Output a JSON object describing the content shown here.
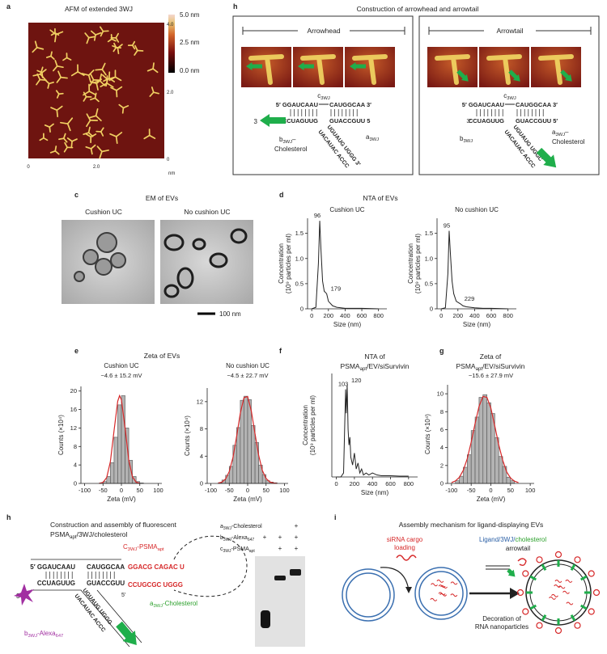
{
  "panels": {
    "a": {
      "label": "a",
      "title": "AFM of extended 3WJ",
      "colorbar": [
        "5.0 nm",
        "2.5 nm",
        "0.0 nm"
      ],
      "x_ticks": [
        "0",
        "2.0"
      ],
      "y_ticks": [
        "4.0",
        "2.0",
        "0"
      ],
      "unit": "nm"
    },
    "b": {
      "label": "h",
      "title": "Construction of arrowhead and arrowtail",
      "arrowhead": {
        "header": "Arrowhead",
        "c": [
          "c",
          "3WJ"
        ],
        "top_left": "5′ GGAUCAAU",
        "top_right": "CAUGGCAA 3′",
        "bottom_end": "3",
        "bottom_left": "CCUAGUUG",
        "bottom_right": "GUACCGUU 5",
        "diag_a": "UGUAUG UGGG 3′",
        "diag_b": "UACAUAC ACCC",
        "b": [
          "b",
          "3WJ",
          "–"
        ],
        "b2": "Cholesterol",
        "a": [
          "a",
          "3WJ"
        ]
      },
      "arrowtail": {
        "header": "Arrowtail",
        "c": [
          "c",
          "3WJ"
        ],
        "top_left": "5′ GGAUCAAU",
        "top_right": "CAUGGCAA 3′",
        "bottom_end": "3′",
        "bottom_left": "CCUAGUUG",
        "bottom_right": "GUACCGUU 5′",
        "diag_a": "UGUAUG UGGC",
        "diag_b": "UACAUAC ACCC",
        "b": [
          "b",
          "3WJ"
        ],
        "a": [
          "a",
          "3WJ",
          "–"
        ],
        "a2": "Cholesterol"
      }
    },
    "c": {
      "label": "c",
      "title": "EM of EVs",
      "left": "Cushion UC",
      "right": "No cushion UC",
      "scale_bar": "100 nm"
    },
    "d": {
      "label": "d",
      "title": "NTA of EVs"
    },
    "e": {
      "label": "e",
      "title": "Zeta of EVs"
    },
    "f": {
      "label": "f",
      "title": "NTA of",
      "title2": [
        "PSMA",
        "apt",
        "/EV/siSurvivin"
      ]
    },
    "g": {
      "label": "g",
      "title": "Zeta of",
      "title2": [
        "PSMA",
        "apt",
        "/EV/siSurvivin"
      ]
    },
    "h": {
      "label": "h",
      "title": "Construction and assembly of fluorescent",
      "title2": [
        "PSMA",
        "apt",
        "/3WJ/cholesterol"
      ],
      "c": [
        "C",
        "3WJ",
        "-PSMA",
        "apt"
      ],
      "top_left": "5′ GGAUCAAU",
      "top_mid": "CAUGGCAA",
      "top_red": "GGACG CAGAC U",
      "end": "3′",
      "bottom_left": "CCUAGUUG",
      "bottom_mid": "GUACCGUU",
      "bottom_red": "CCUGCGC UGGG",
      "five": "5′",
      "diag_a": "UGUAUG UGGG",
      "diag_b": "UACAUAC ACCC",
      "a": [
        "a",
        "3WJ",
        "-Cholesterol"
      ],
      "b": [
        "b",
        "3WJ",
        "-Alexa",
        "647"
      ],
      "gel": {
        "rows": [
          [
            "a",
            "3WJ",
            "-Cholesterol"
          ],
          [
            "b",
            "3WJ",
            "-Alexa",
            "647"
          ],
          [
            "c",
            "3WJ",
            "-PSMA",
            "apt"
          ]
        ],
        "signs": [
          [
            "+"
          ],
          [
            "+",
            "+",
            "+"
          ],
          [
            "+",
            "+"
          ]
        ]
      }
    },
    "i": {
      "label": "i",
      "title": "Assembly mechanism for ligand-displaying EVs",
      "cargo": [
        "siRNA cargo",
        "loading"
      ],
      "ligand": [
        "Ligand/3WJ/",
        "cholesterol"
      ],
      "arrowtail": "arrowtail",
      "decoration": [
        "Decoration of",
        "RNA nanoparticles"
      ]
    }
  },
  "chart_data": [
    {
      "type": "line",
      "title": "Cushion UC",
      "x": [
        0,
        50,
        80,
        96,
        110,
        130,
        150,
        179,
        200,
        250,
        300,
        400,
        500,
        600,
        800
      ],
      "values": [
        0,
        0.03,
        0.9,
        1.75,
        1.2,
        0.55,
        0.35,
        0.3,
        0.15,
        0.06,
        0.03,
        0.01,
        0.01,
        0.01,
        0
      ],
      "peaks": [
        96,
        179
      ],
      "color": "#222222",
      "xlim": [
        -50,
        900
      ],
      "ylim": [
        0,
        1.8
      ],
      "xticks": [
        0,
        200,
        400,
        600,
        800
      ],
      "yticks": [
        0,
        0.5,
        {
          "value": 1,
          "label": "1.0"
        },
        1.5
      ],
      "xlabel": "Size (nm)",
      "ylabel": [
        "Concentration",
        "(10⁹ particles per ml)"
      ]
    },
    {
      "type": "line",
      "title": "No cushion UC",
      "x": [
        0,
        50,
        80,
        95,
        110,
        130,
        150,
        180,
        229,
        260,
        300,
        400,
        500,
        600,
        800
      ],
      "values": [
        0,
        0.02,
        0.7,
        1.55,
        1.1,
        0.55,
        0.3,
        0.15,
        0.1,
        0.06,
        0.04,
        0.02,
        0.01,
        0.01,
        0
      ],
      "peaks": [
        95,
        229
      ],
      "color": "#222222",
      "xlim": [
        -50,
        900
      ],
      "ylim": [
        0,
        1.8
      ],
      "xticks": [
        0,
        200,
        400,
        600,
        800
      ],
      "yticks": [
        0,
        0.5,
        {
          "value": 1,
          "label": "1.0"
        },
        1.5
      ],
      "xlabel": "Size (nm)",
      "ylabel": [
        "Concentration",
        "(10⁹ particles per ml)"
      ]
    },
    {
      "type": "histogram",
      "title": "Cushion UC",
      "subtitle": "−4.6 ± 15.2 mV",
      "bins": [
        -60,
        -50,
        -40,
        -30,
        -20,
        -10,
        0,
        10,
        20,
        30,
        40,
        50,
        60
      ],
      "values": [
        0.1,
        0.4,
        1.5,
        4.5,
        10,
        17,
        19,
        12,
        5,
        1.5,
        0.4,
        0.1
      ],
      "color": "#b3b3b3",
      "fit": {
        "x": [
          -60,
          -50,
          -40,
          -30,
          -20,
          -10,
          -5,
          0,
          10,
          20,
          30,
          40,
          50
        ],
        "values": [
          0.02,
          0.22,
          1.26,
          4.7,
          11.4,
          17.8,
          19,
          18.1,
          12,
          5.1,
          1.43,
          0.26,
          0.03
        ],
        "color": "#d62728"
      },
      "xlim": [
        -110,
        110
      ],
      "ylim": [
        0,
        21
      ],
      "xticks": [
        -100,
        -50,
        0,
        50,
        100
      ],
      "yticks": [
        0,
        4,
        8,
        12,
        16,
        20
      ],
      "xlabel": "Zeta (mV)",
      "ylabel": [
        "Counts (×10⁴)"
      ]
    },
    {
      "type": "histogram",
      "title": "No cushion UC",
      "subtitle": "−4.5 ± 22.7 mV",
      "bins": [
        -80,
        -70,
        -60,
        -50,
        -40,
        -30,
        -20,
        -10,
        0,
        10,
        20,
        30,
        40,
        50,
        60,
        70,
        80
      ],
      "values": [
        0.1,
        0.5,
        1.2,
        2.5,
        5.6,
        8.2,
        12.2,
        12.8,
        12.3,
        8.5,
        6,
        2.7,
        1.3,
        0.4,
        0.2,
        0.1
      ],
      "color": "#b3b3b3",
      "fit": {
        "x": [
          -80,
          -70,
          -60,
          -50,
          -40,
          -30,
          -20,
          -10,
          0,
          10,
          20,
          30,
          40,
          50,
          60,
          70,
          80
        ],
        "values": [
          0.05,
          0.2,
          0.65,
          1.74,
          3.8,
          6.9,
          10.3,
          12.6,
          12.75,
          10.6,
          7.3,
          4.1,
          1.9,
          0.73,
          0.23,
          0.06,
          0.01
        ],
        "color": "#d62728"
      },
      "xlim": [
        -110,
        110
      ],
      "ylim": [
        0,
        14
      ],
      "xticks": [
        -100,
        -50,
        0,
        50,
        100
      ],
      "yticks": [
        0,
        4,
        8,
        12
      ],
      "xlabel": "Zeta (mV)",
      "ylabel": [
        "Counts (×10⁴)"
      ]
    },
    {
      "type": "line",
      "x": [
        0,
        50,
        80,
        95,
        103,
        110,
        120,
        130,
        140,
        150,
        160,
        180,
        200,
        220,
        240,
        260,
        280,
        300,
        330,
        360,
        400,
        450,
        500,
        600,
        700,
        800
      ],
      "values": [
        0,
        0,
        0.1,
        1.5,
        2.2,
        1.6,
        2.3,
        1.2,
        0.8,
        1.0,
        0.5,
        0.3,
        0.6,
        0.2,
        0.35,
        0.1,
        0.2,
        0.05,
        0.1,
        0.05,
        0.1,
        0.05,
        0.03,
        0.03,
        0.02,
        0.02
      ],
      "peaks": [
        103,
        120
      ],
      "color": "#222222",
      "xlim": [
        -50,
        900
      ],
      "ylim": [
        0,
        2.6
      ],
      "xticks": [
        0,
        200,
        400,
        600,
        800
      ],
      "xlabel": "Size (nm)",
      "ylabel": [
        "Concentration",
        "(10⁹ particles per ml)"
      ]
    },
    {
      "type": "histogram",
      "subtitle": "−15.6 ± 27.9 mV",
      "bins": [
        -90,
        -80,
        -70,
        -60,
        -50,
        -40,
        -30,
        -20,
        -10,
        0,
        10,
        20,
        30,
        40,
        50,
        60
      ],
      "values": [
        0.3,
        0.8,
        1.8,
        3.2,
        5.9,
        7.4,
        9.6,
        9.9,
        9.0,
        7.8,
        5.1,
        3.0,
        1.9,
        0.7,
        0.3
      ],
      "color": "#b3b3b3",
      "fit": {
        "x": [
          -100,
          -90,
          -80,
          -70,
          -60,
          -50,
          -40,
          -30,
          -20,
          -10,
          0,
          10,
          20,
          30,
          40,
          50,
          60,
          70
        ],
        "values": [
          0.1,
          0.28,
          0.68,
          1.47,
          2.76,
          4.6,
          6.7,
          8.6,
          9.7,
          9.6,
          8.4,
          6.4,
          4.3,
          2.6,
          1.3,
          0.6,
          0.25,
          0.1
        ],
        "color": "#d62728"
      },
      "xlim": [
        -110,
        110
      ],
      "ylim": [
        0,
        11
      ],
      "xticks": [
        -100,
        -50,
        0,
        50,
        100
      ],
      "yticks": [
        0,
        2,
        4,
        6,
        8,
        10
      ],
      "xlabel": "Zeta (mV)",
      "ylabel": [
        "Counts (×10⁴)"
      ]
    }
  ]
}
